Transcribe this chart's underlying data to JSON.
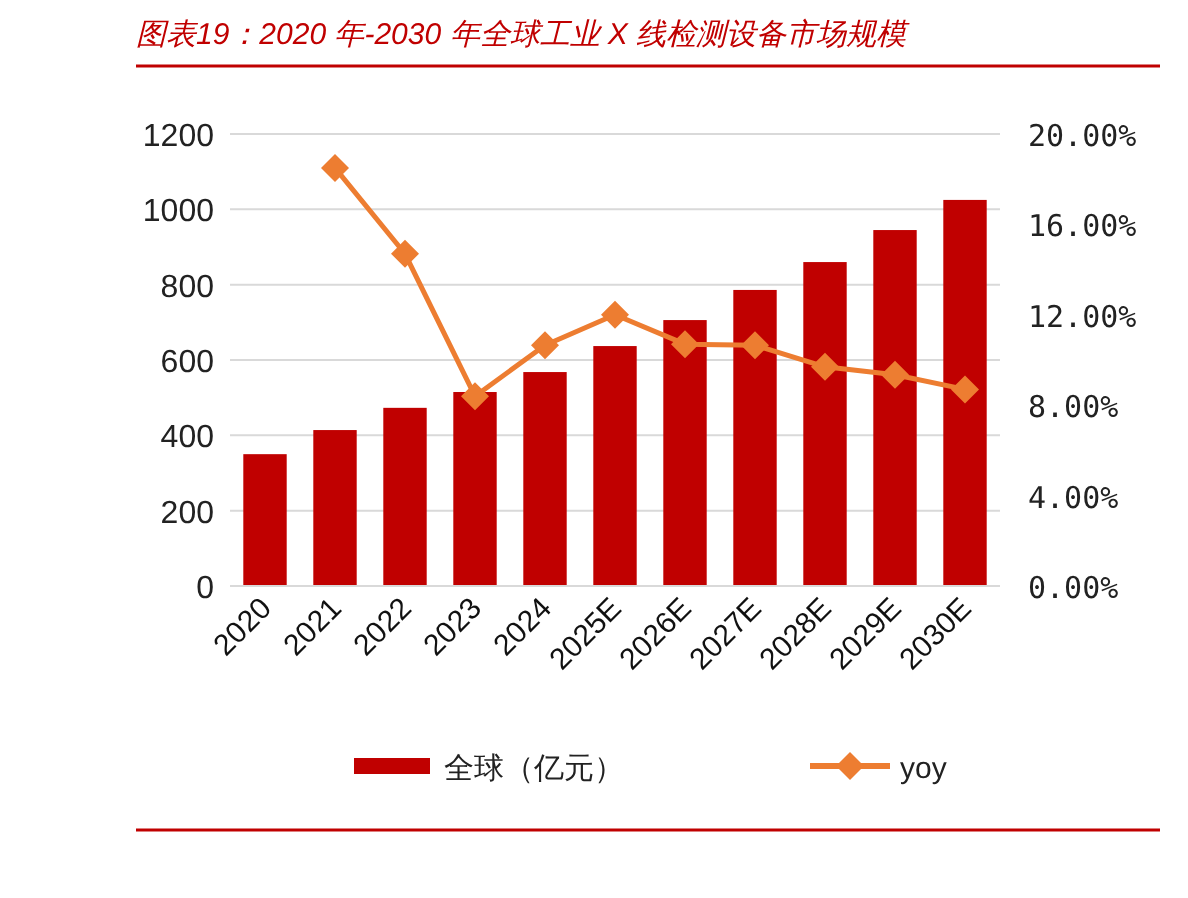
{
  "chart_data": {
    "type": "bar",
    "title": "图表19：2020 年-2030 年全球工业 X 线检测设备市场规模",
    "categories": [
      "2020",
      "2021",
      "2022",
      "2023",
      "2024",
      "2025E",
      "2026E",
      "2027E",
      "2028E",
      "2029E",
      "2030E"
    ],
    "series": [
      {
        "name": "全球（亿元）",
        "color": "#c00000",
        "values": [
          350,
          414,
          473,
          515,
          568,
          637,
          706,
          786,
          860,
          945,
          1025
        ]
      },
      {
        "name": "yoy",
        "type": "line",
        "axis": "y2",
        "color": "#ed7d31",
        "values": [
          null,
          18.5,
          14.7,
          8.4,
          10.65,
          12.0,
          10.7,
          10.65,
          9.7,
          9.35,
          8.7
        ]
      }
    ],
    "ylim": [
      0,
      1200
    ],
    "yticks": [
      0,
      200,
      400,
      600,
      800,
      1000,
      1200
    ],
    "y2lim": [
      0,
      20
    ],
    "y2ticks": [
      {
        "value": 0,
        "label": "0.00%"
      },
      {
        "value": 4,
        "label": "4.00%"
      },
      {
        "value": 8,
        "label": "8.00%"
      },
      {
        "value": 12,
        "label": "12.00%"
      },
      {
        "value": 16,
        "label": "16.00%"
      },
      {
        "value": 20,
        "label": "20.00%"
      }
    ],
    "grid": "y",
    "legend": "bottom",
    "marker": "diamond"
  }
}
